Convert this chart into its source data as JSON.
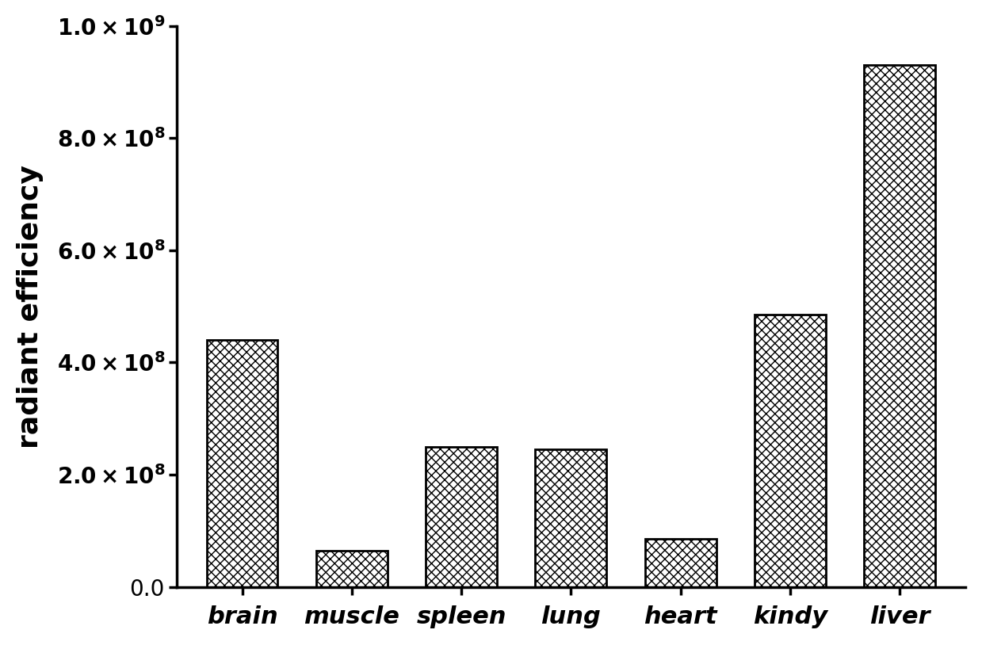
{
  "categories": [
    "brain",
    "muscle",
    "spleen",
    "lung",
    "heart",
    "kindy",
    "liver"
  ],
  "values": [
    440000000.0,
    65000000.0,
    250000000.0,
    245000000.0,
    85000000.0,
    485000000.0,
    930000000.0
  ],
  "bar_color": "#000000",
  "bar_fill_color": "white",
  "ylabel": "radiant efficiency",
  "ylim": [
    0,
    1000000000.0
  ],
  "yticks": [
    0.0,
    200000000.0,
    400000000.0,
    600000000.0,
    800000000.0,
    1000000000.0
  ],
  "ylabel_fontsize": 26,
  "tick_fontsize": 20,
  "xlabel_fontsize": 22,
  "background_color": "#ffffff",
  "hatch_pattern": "xxx",
  "bar_edge_color": "#000000",
  "bar_width": 0.65
}
